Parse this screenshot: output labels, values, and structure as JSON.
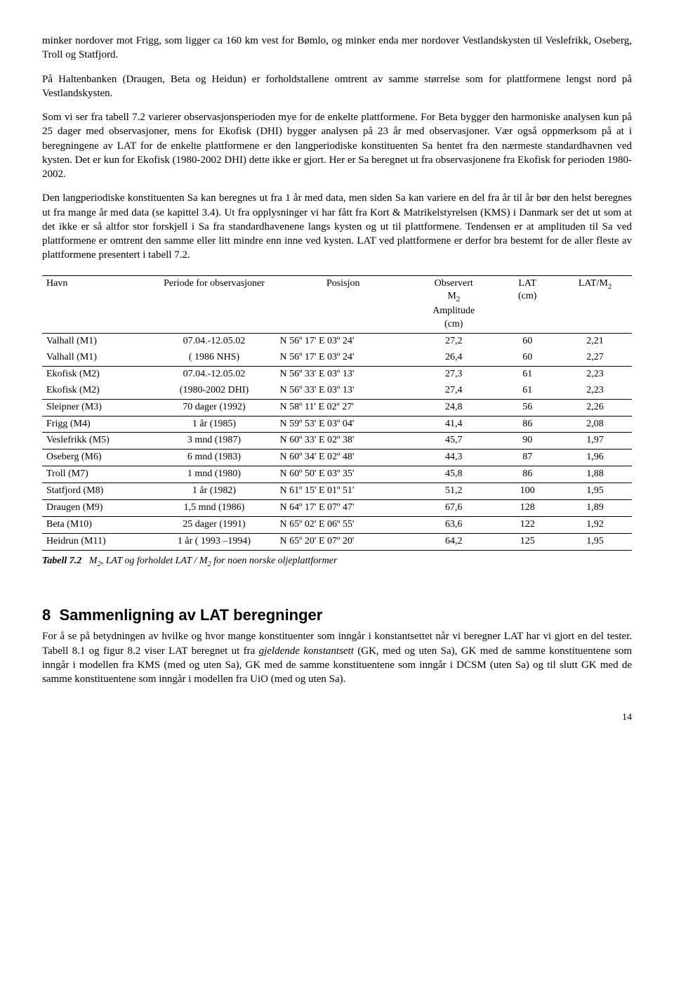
{
  "paragraphs": {
    "p1": "minker nordover mot Frigg, som ligger ca 160 km vest for Bømlo, og minker enda mer nordover Vestlandskysten til Veslefrikk, Oseberg, Troll og Statfjord.",
    "p2": "På Haltenbanken (Draugen, Beta og Heidun) er forholdstallene omtrent av samme størrelse som for plattformene lengst nord på Vestlandskysten.",
    "p3": "Som vi ser fra tabell 7.2 varierer observasjonsperioden mye for de enkelte plattformene. For Beta bygger den harmoniske analysen kun på 25 dager med observasjoner, mens for Ekofisk (DHI) bygger analysen på 23 år med observasjoner. Vær også oppmerksom på at i beregningene av LAT for de enkelte plattformene er den langperiodiske konstituenten Sa hentet fra den nærmeste standardhavnen ved kysten. Det er kun for Ekofisk (1980-2002 DHI) dette ikke er gjort. Her er Sa beregnet ut fra observasjonene fra Ekofisk for perioden 1980-2002.",
    "p4": "Den langperiodiske konstituenten Sa kan beregnes ut fra 1 år med data, men siden Sa kan variere en del fra år til år bør den helst beregnes ut fra mange år med data (se kapittel 3.4). Ut fra opplysninger vi har fått fra Kort & Matrikelstyrelsen (KMS) i Danmark ser det ut som at det ikke er så altfor stor forskjell i Sa fra standardhavenene langs kysten og ut til plattformene. Tendensen er at amplituden til Sa ved plattformene er omtrent den samme eller litt mindre enn inne ved kysten. LAT ved plattformene er derfor bra bestemt for de aller fleste av plattformene presentert i tabell 7.2."
  },
  "table": {
    "headers": {
      "havn": "Havn",
      "periode": "Periode for observasjoner",
      "posisjon": "Posisjon",
      "m2_line1": "Observert",
      "m2_line2": "M",
      "m2_sub": "2",
      "m2_line3": "Amplitude",
      "m2_line4": "(cm)",
      "lat": "LAT",
      "lat2": "(cm)",
      "latm2": "LAT/M",
      "latm2_sub": "2"
    },
    "rows": [
      {
        "havn": "Valhall (M1)",
        "periode": "07.04.-12.05.02",
        "posisjon": "N 56º 17' E 03º 24'",
        "m2": "27,2",
        "lat": "60",
        "ratio": "2,21",
        "group_end": false
      },
      {
        "havn": "Valhall (M1)",
        "periode": "( 1986 NHS)",
        "posisjon": "N 56º 17' E 03º 24'",
        "m2": "26,4",
        "lat": "60",
        "ratio": "2,27",
        "group_end": true
      },
      {
        "havn": "Ekofisk (M2)",
        "periode": "07.04.-12.05.02",
        "posisjon": "N 56º 33' E 03º 13'",
        "m2": "27,3",
        "lat": "61",
        "ratio": "2,23",
        "group_end": false
      },
      {
        "havn": "Ekofisk (M2)",
        "periode": "(1980-2002 DHI)",
        "posisjon": "N 56º 33' E 03º 13'",
        "m2": "27,4",
        "lat": "61",
        "ratio": "2,23",
        "group_end": true
      },
      {
        "havn": "Sleipner (M3)",
        "periode": "70 dager (1992)",
        "posisjon": "N 58º 11' E 02º 27'",
        "m2": "24,8",
        "lat": "56",
        "ratio": "2,26",
        "group_end": true
      },
      {
        "havn": "Frigg (M4)",
        "periode": "1 år (1985)",
        "posisjon": "N 59º 53' E 03º 04'",
        "m2": "41,4",
        "lat": "86",
        "ratio": "2,08",
        "group_end": true
      },
      {
        "havn": "Veslefrikk (M5)",
        "periode": "3 mnd (1987)",
        "posisjon": "N 60º 33' E 02º 38'",
        "m2": "45,7",
        "lat": "90",
        "ratio": "1,97",
        "group_end": true
      },
      {
        "havn": "Oseberg (M6)",
        "periode": "6 mnd (1983)",
        "posisjon": "N 60º 34' E 02º 48'",
        "m2": "44,3",
        "lat": "87",
        "ratio": "1,96",
        "group_end": true
      },
      {
        "havn": "Troll (M7)",
        "periode": "1 mnd (1980)",
        "posisjon": "N 60º 50' E 03º 35'",
        "m2": "45,8",
        "lat": "86",
        "ratio": "1,88",
        "group_end": true
      },
      {
        "havn": "Statfjord (M8)",
        "periode": "1 år (1982)",
        "posisjon": "N 61º 15' E 01º 51'",
        "m2": "51,2",
        "lat": "100",
        "ratio": "1,95",
        "group_end": true
      },
      {
        "havn": "Draugen (M9)",
        "periode": "1,5 mnd (1986)",
        "posisjon": "N 64º 17' E 07º 47'",
        "m2": "67,6",
        "lat": "128",
        "ratio": "1,89",
        "group_end": true
      },
      {
        "havn": "Beta (M10)",
        "periode": "25 dager  (1991)",
        "posisjon": "N 65º 02' E 06º 55'",
        "m2": "63,6",
        "lat": "122",
        "ratio": "1,92",
        "group_end": true
      },
      {
        "havn": "Heidrun (M11)",
        "periode": "1 år ( 1993 –1994)",
        "posisjon": "N 65º 20' E 07º 20'",
        "m2": "64,2",
        "lat": "125",
        "ratio": "1,95",
        "group_end": false
      }
    ]
  },
  "caption": {
    "label": "Tabell 7.2",
    "text_a": "M",
    "text_a_sub": "2",
    "text_b": ", LAT og forholdet LAT / M",
    "text_b_sub": "2",
    "text_c": " for noen norske oljeplattformer"
  },
  "section": {
    "number": "8",
    "title": "Sammenligning av LAT beregninger",
    "body": "For å se på betydningen av hvilke og hvor mange konstituenter som inngår i konstantsettet når vi beregner LAT har vi gjort en del tester. Tabell 8.1 og figur 8.2 viser LAT beregnet ut fra ",
    "body_i": "gjeldende konstantsett",
    "body2": " (GK, med og uten Sa), GK med de samme konstituentene som inngår i modellen fra KMS (med og uten Sa), GK med de samme konstituentene som inngår i DCSM (uten Sa) og til slutt GK med de samme konstituentene som inngår i modellen fra UiO (med og uten Sa)."
  },
  "page_number": "14"
}
